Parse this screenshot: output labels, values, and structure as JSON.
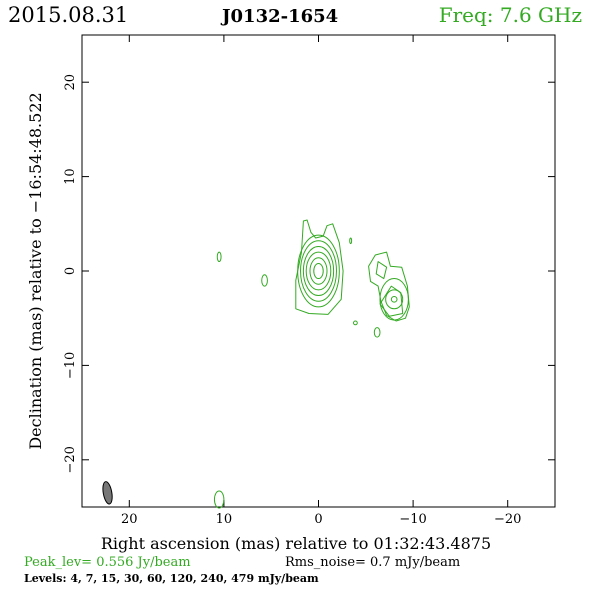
{
  "header": {
    "date": "2015.08.31",
    "source": "J0132-1654",
    "freq": "Freq: 7.6 GHz"
  },
  "footer": {
    "peak": "Peak_lev=  0.556 Jy/beam",
    "rms": "Rms_noise=  0.7 mJy/beam",
    "levels": "Levels:   4,   7,  15,  30,  60, 120, 240, 479 mJy/beam"
  },
  "colors": {
    "contour": "#33aa22",
    "beam": "#777777",
    "text": "#000000"
  },
  "chart_data": {
    "type": "contour",
    "xlabel": "Right ascension (mas) relative to 01:32:43.4875",
    "ylabel": "Declination (mas) relative to −16:54:48.522",
    "xlim": [
      25,
      -25
    ],
    "ylim": [
      -25,
      25
    ],
    "xticks": [
      20,
      10,
      0,
      -10,
      -20
    ],
    "xtick_labels": [
      "20",
      "10",
      "0",
      "−10",
      "−20"
    ],
    "yticks": [
      20,
      10,
      0,
      -10,
      -20
    ],
    "ytick_labels": [
      "20",
      "10",
      "0",
      "−10",
      "−20"
    ],
    "levels_mJy": [
      4,
      7,
      15,
      30,
      60,
      120,
      240,
      479
    ],
    "peak_Jy_per_beam": 0.556,
    "rms_mJy_per_beam": 0.7,
    "core": {
      "x": 0,
      "y": 0,
      "rings": [
        {
          "rx": 0.5,
          "ry": 0.8
        },
        {
          "rx": 0.9,
          "ry": 1.4
        },
        {
          "rx": 1.3,
          "ry": 2.0
        },
        {
          "rx": 1.6,
          "ry": 2.6
        },
        {
          "rx": 1.9,
          "ry": 3.2
        },
        {
          "rx": 2.2,
          "ry": 3.8
        }
      ]
    },
    "jet_component": {
      "x": -8,
      "y": -3,
      "rings": [
        {
          "rx": 0.3,
          "ry": 0.3
        },
        {
          "rx": 0.9,
          "ry": 1.0
        },
        {
          "rx": 1.5,
          "ry": 2.2
        }
      ]
    },
    "outer_contours": [
      [
        [
          1.6,
          5.3
        ],
        [
          1.8,
          2.0
        ],
        [
          2.4,
          -1.0
        ],
        [
          2.4,
          -4.0
        ],
        [
          1.0,
          -4.5
        ],
        [
          -1.0,
          -4.6
        ],
        [
          -2.4,
          -3.0
        ],
        [
          -2.6,
          0.0
        ],
        [
          -2.2,
          3.0
        ],
        [
          -1.5,
          5.0
        ],
        [
          -0.9,
          4.8
        ],
        [
          -0.5,
          3.7
        ],
        [
          0.3,
          3.5
        ],
        [
          0.8,
          4.1
        ],
        [
          1.2,
          5.4
        ],
        [
          1.6,
          5.3
        ]
      ],
      [
        [
          -6.0,
          1.7
        ],
        [
          -7.2,
          2.0
        ],
        [
          -7.6,
          0.5
        ],
        [
          -8.8,
          0.4
        ],
        [
          -9.4,
          -1.6
        ],
        [
          -9.6,
          -3.8
        ],
        [
          -9.2,
          -5.0
        ],
        [
          -8.2,
          -5.3
        ],
        [
          -7.2,
          -4.7
        ],
        [
          -6.6,
          -3.2
        ],
        [
          -6.3,
          -1.6
        ],
        [
          -5.5,
          -1.1
        ],
        [
          -5.3,
          0.5
        ],
        [
          -6.0,
          1.7
        ]
      ],
      [
        [
          -6.3,
          1.0
        ],
        [
          -7.2,
          0.4
        ],
        [
          -6.9,
          -0.8
        ],
        [
          -6.1,
          -0.3
        ],
        [
          -6.3,
          1.0
        ]
      ],
      [
        [
          -6.5,
          -3.5
        ],
        [
          -7.5,
          -4.8
        ],
        [
          -8.9,
          -4.5
        ],
        [
          -8.7,
          -2.3
        ],
        [
          -7.7,
          -1.6
        ],
        [
          -6.5,
          -3.5
        ]
      ]
    ],
    "islands": [
      {
        "x": 10.5,
        "y": 1.5,
        "rx": 0.2,
        "ry": 0.5
      },
      {
        "x": 5.7,
        "y": -1.0,
        "rx": 0.3,
        "ry": 0.6
      },
      {
        "x": -3.4,
        "y": 3.2,
        "rx": 0.1,
        "ry": 0.3
      },
      {
        "x": -3.9,
        "y": -5.5,
        "rx": 0.2,
        "ry": 0.2
      },
      {
        "x": -6.2,
        "y": -6.5,
        "rx": 0.3,
        "ry": 0.5
      },
      {
        "x": 10.5,
        "y": -24.2,
        "rx": 0.5,
        "ry": 0.9
      }
    ],
    "beam": {
      "x": 22.3,
      "y": -23.5,
      "major_mas": 2.4,
      "minor_mas": 0.9,
      "pa_deg": -10
    }
  }
}
